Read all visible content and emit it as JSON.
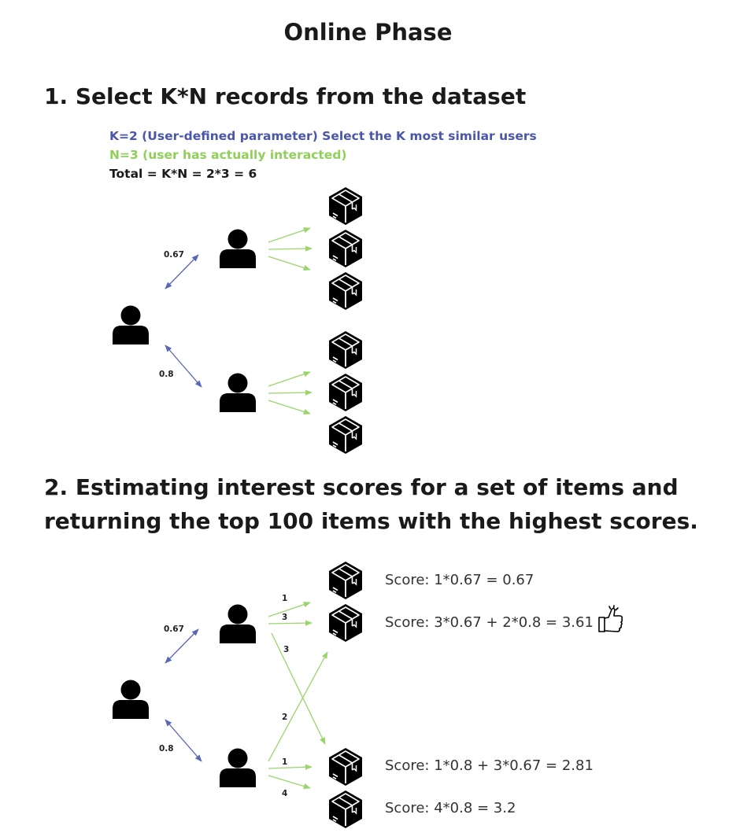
{
  "title": "Online Phase",
  "section1": {
    "heading": "1. Select K*N records from the dataset",
    "k_line": "K=2 (User-defined parameter) Select the K most similar users",
    "n_line": "N=3 (user has actually interacted)",
    "total_line": "Total = K*N = 2*3 = 6",
    "weights": [
      "0.67",
      "0.8"
    ]
  },
  "section2": {
    "heading_line1": "2. Estimating interest scores for a set of items and",
    "heading_line2": "returning the top 100 items with the highest scores.",
    "weights": [
      "0.67",
      "0.8"
    ],
    "edge_labels": [
      "1",
      "3",
      "3",
      "2",
      "1",
      "4"
    ],
    "scores": [
      "Score: 1*0.67 = 0.67",
      "Score: 3*0.67 + 2*0.8 = 3.61",
      "Score: 1*0.8 + 3*0.67 = 2.81",
      "Score: 4*0.8 = 3.2"
    ],
    "top_item_badge_icon": "thumbs-up-icon"
  },
  "colors": {
    "similarity_arrow": "#5a66b6",
    "interaction_arrow": "#9ad46a",
    "k_text": "#4a56a8",
    "n_text": "#8fcf5a",
    "icon": "#000000"
  }
}
